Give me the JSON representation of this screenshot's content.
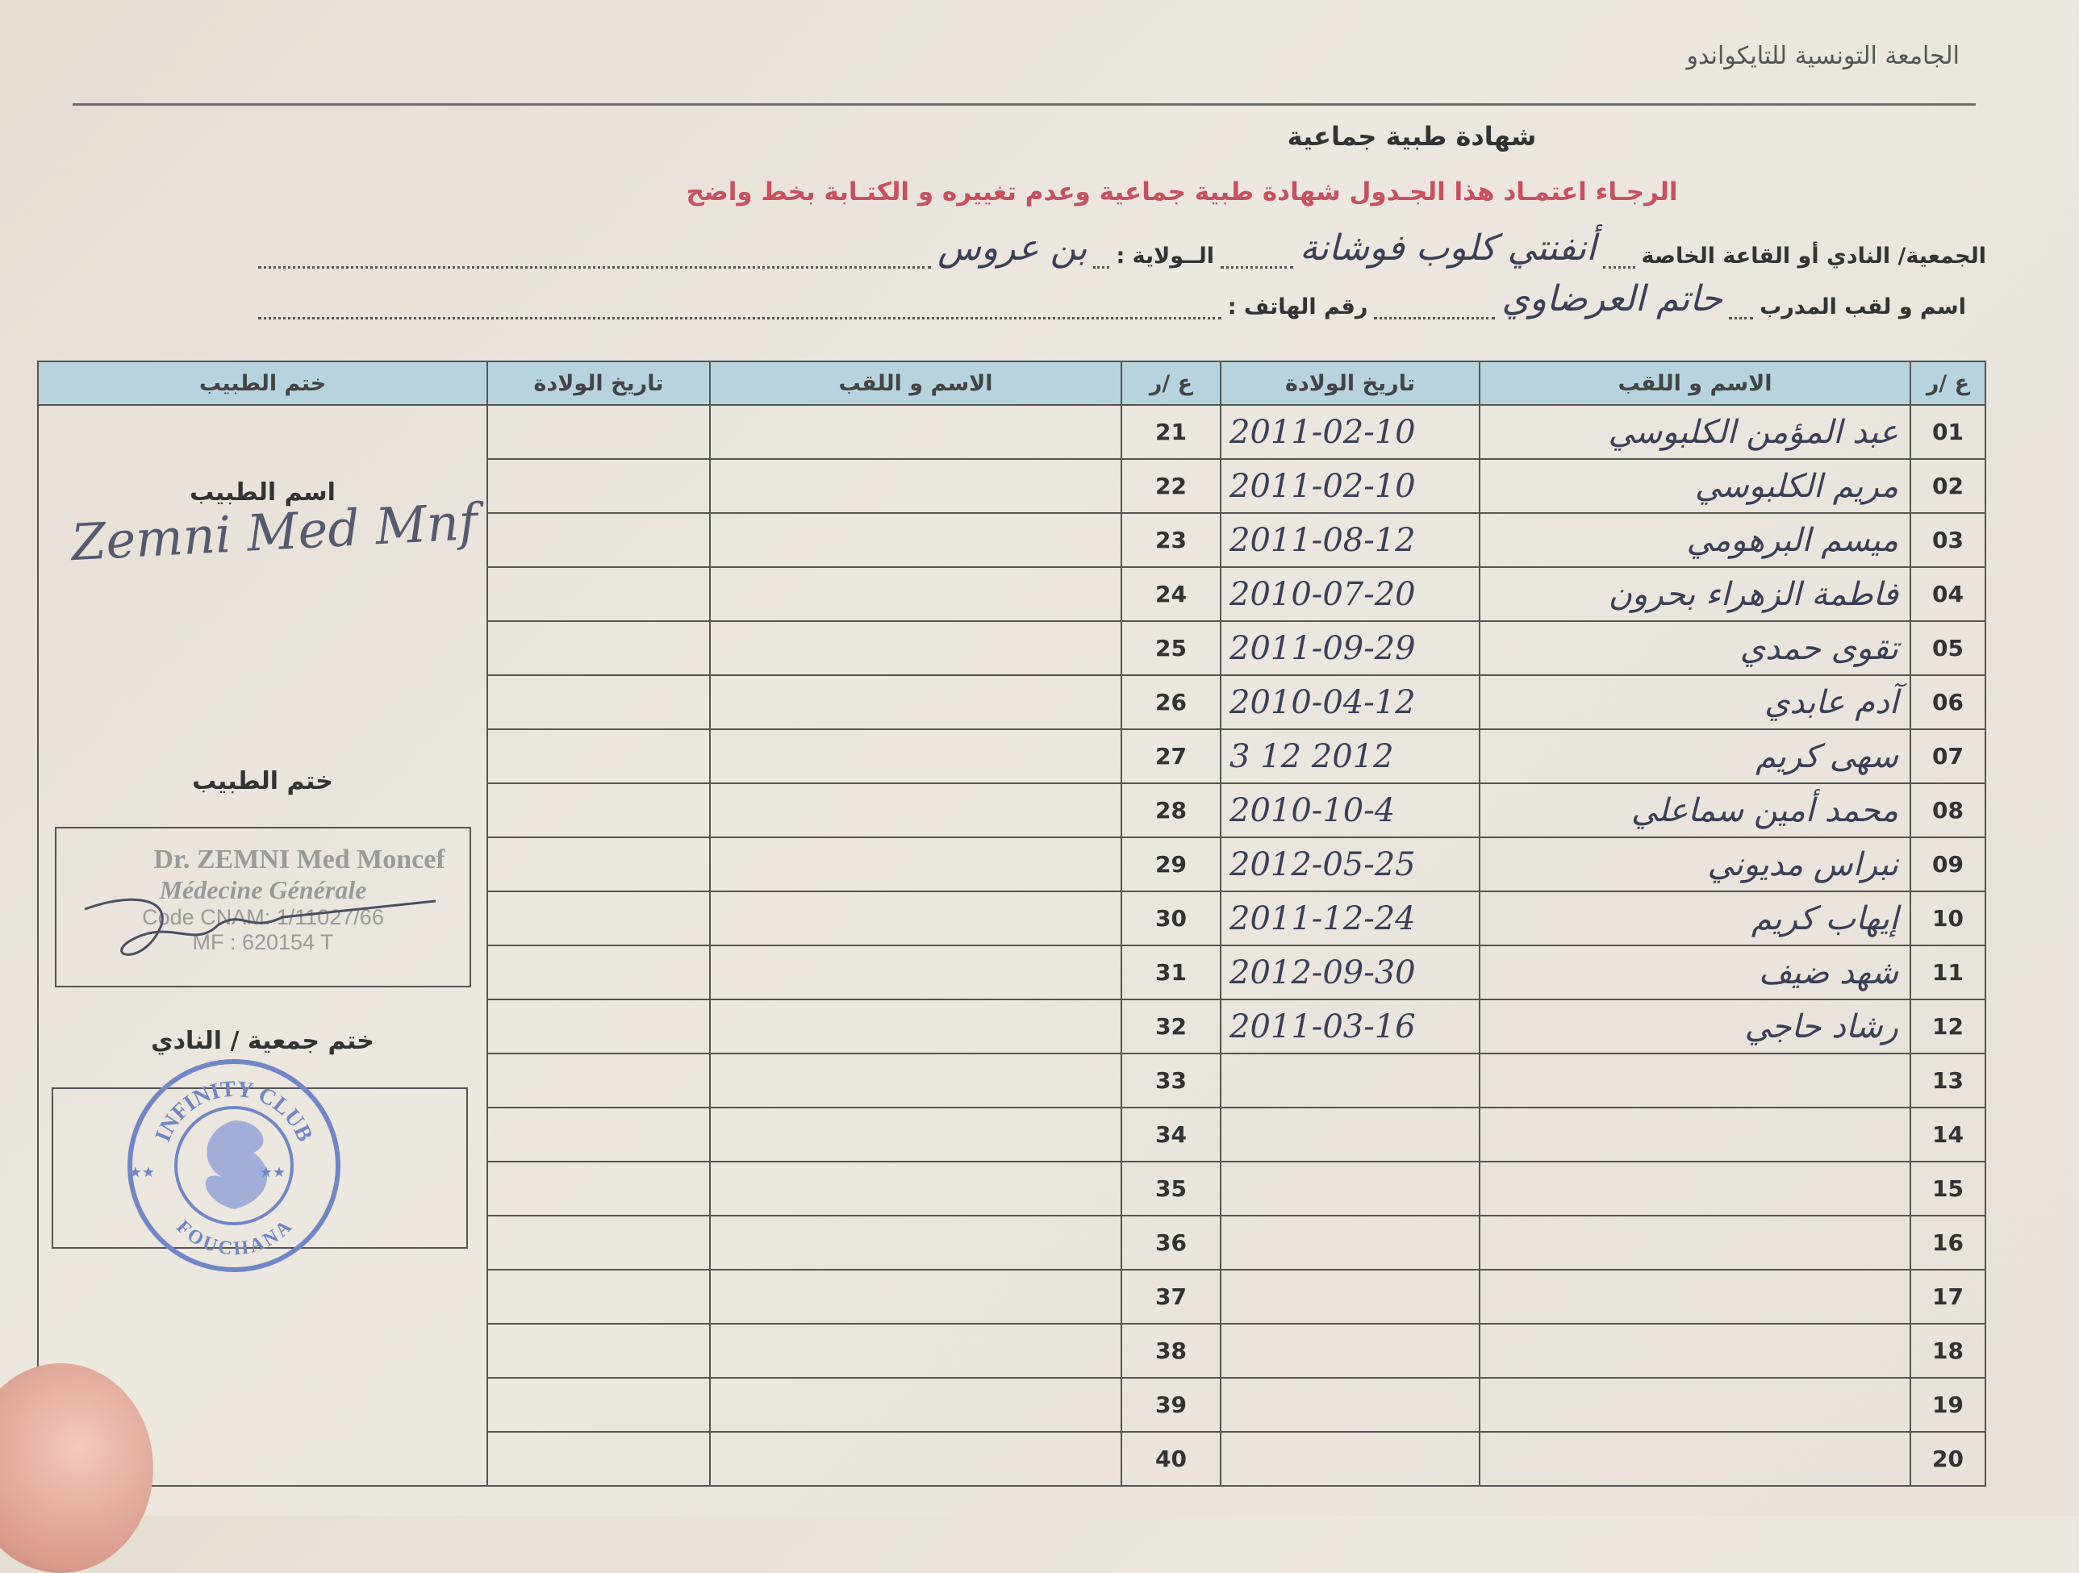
{
  "header": {
    "organization": "الجامعة التونسية للتايكواندو",
    "title": "شهادة طبية جماعية",
    "instruction": "الرجـاء اعتمـاد هذا الجـدول  شهادة طبية جماعية وعدم تغييره و الكتـابة بخط واضح"
  },
  "fields": {
    "club_label": "الجمعية/ النادي أو القاعة الخاصة",
    "club_value": "أنفنتي كلوب فوشانة",
    "state_label": "الــولاية :",
    "state_value": "بن عروس",
    "coach_label": "اسم و لقب المدرب",
    "coach_value": "حاتم العرضاوي",
    "phone_label": "رقم الهاتف :",
    "phone_value": ""
  },
  "table": {
    "headers": {
      "num": "ع /ر",
      "name": "الاسم و اللقب",
      "dob": "تاريخ الولادة",
      "doctor_stamp": "ختم الطبيب"
    },
    "rows": [
      {
        "num": "01",
        "name": "عبد المؤمن الكلبوسي",
        "dob": "2011-02-10",
        "num2": "21",
        "name2": "",
        "dob2": ""
      },
      {
        "num": "02",
        "name": "مريم الكلبوسي",
        "dob": "2011-02-10",
        "num2": "22",
        "name2": "",
        "dob2": ""
      },
      {
        "num": "03",
        "name": "ميسم البرهومي",
        "dob": "2011-08-12",
        "num2": "23",
        "name2": "",
        "dob2": ""
      },
      {
        "num": "04",
        "name": "فاطمة الزهراء بحرون",
        "dob": "2010-07-20",
        "num2": "24",
        "name2": "",
        "dob2": ""
      },
      {
        "num": "05",
        "name": "تقوى حمدي",
        "dob": "2011-09-29",
        "num2": "25",
        "name2": "",
        "dob2": ""
      },
      {
        "num": "06",
        "name": "آدم عابدي",
        "dob": "2010-04-12",
        "num2": "26",
        "name2": "",
        "dob2": ""
      },
      {
        "num": "07",
        "name": "سهى كريم",
        "dob": "2012 12 3",
        "num2": "27",
        "name2": "",
        "dob2": ""
      },
      {
        "num": "08",
        "name": "محمد أمين سماعلي",
        "dob": "2010-10-4",
        "num2": "28",
        "name2": "",
        "dob2": ""
      },
      {
        "num": "09",
        "name": "نبراس مديوني",
        "dob": "2012-05-25",
        "num2": "29",
        "name2": "",
        "dob2": ""
      },
      {
        "num": "10",
        "name": "إيهاب كريم",
        "dob": "2011-12-24",
        "num2": "30",
        "name2": "",
        "dob2": ""
      },
      {
        "num": "11",
        "name": "شهد ضيف",
        "dob": "2012-09-30",
        "num2": "31",
        "name2": "",
        "dob2": ""
      },
      {
        "num": "12",
        "name": "رشاد حاجي",
        "dob": "2011-03-16",
        "num2": "32",
        "name2": "",
        "dob2": ""
      },
      {
        "num": "13",
        "name": "",
        "dob": "",
        "num2": "33",
        "name2": "",
        "dob2": ""
      },
      {
        "num": "14",
        "name": "",
        "dob": "",
        "num2": "34",
        "name2": "",
        "dob2": ""
      },
      {
        "num": "15",
        "name": "",
        "dob": "",
        "num2": "35",
        "name2": "",
        "dob2": ""
      },
      {
        "num": "16",
        "name": "",
        "dob": "",
        "num2": "36",
        "name2": "",
        "dob2": ""
      },
      {
        "num": "17",
        "name": "",
        "dob": "",
        "num2": "37",
        "name2": "",
        "dob2": ""
      },
      {
        "num": "18",
        "name": "",
        "dob": "",
        "num2": "38",
        "name2": "",
        "dob2": ""
      },
      {
        "num": "19",
        "name": "",
        "dob": "",
        "num2": "39",
        "name2": "",
        "dob2": ""
      },
      {
        "num": "20",
        "name": "",
        "dob": "",
        "num2": "40",
        "name2": "",
        "dob2": ""
      }
    ]
  },
  "doctor": {
    "name_label": "اسم الطبيب",
    "name_signature": "Zemni Med Mnf",
    "stamp_label": "ختم الطبيب",
    "stamp_line1": "Dr. ZEMNI Med Moncef",
    "stamp_line2": "Médecine Générale",
    "stamp_line3": "Code CNAM: 1/11027/66",
    "stamp_line4": "MF : 620154 T",
    "club_stamp_label": "ختم جمعية / النادي"
  },
  "club_stamp": {
    "top_text": "INFINITY CLUB",
    "bottom_text": "FOUCHANA",
    "color": "#6f86c9"
  }
}
